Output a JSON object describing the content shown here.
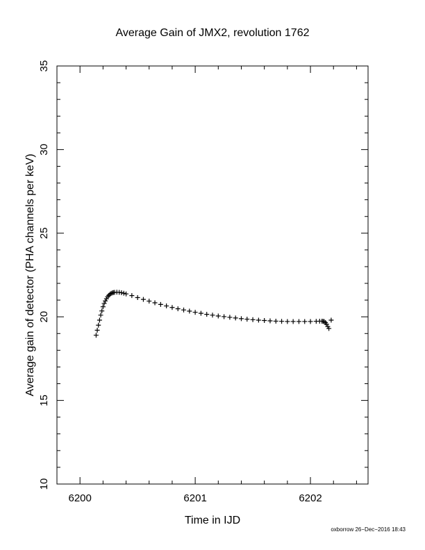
{
  "chart_data": {
    "type": "scatter",
    "title": "Average Gain of JMX2, revolution 1762",
    "xlabel": "Time in IJD",
    "ylabel": "Average gain of detector (PHA channels per keV)",
    "xlim": [
      6199.8,
      6202.5
    ],
    "ylim": [
      10,
      35
    ],
    "xticks": [
      6200,
      6201,
      6202
    ],
    "xtick_labels": [
      "6200",
      "6201",
      "6202"
    ],
    "yticks": [
      10,
      15,
      20,
      25,
      30,
      35
    ],
    "ytick_labels": [
      "10",
      "15",
      "20",
      "25",
      "30",
      "35"
    ],
    "marker": "+",
    "grid": false,
    "series": [
      {
        "x": [
          6200.14,
          6200.15,
          6200.16,
          6200.17,
          6200.18,
          6200.19,
          6200.2,
          6200.21,
          6200.22,
          6200.23,
          6200.24,
          6200.25,
          6200.26,
          6200.27,
          6200.28,
          6200.29,
          6200.3,
          6200.32,
          6200.34,
          6200.36,
          6200.38,
          6200.4,
          6200.45,
          6200.5,
          6200.55,
          6200.6,
          6200.65,
          6200.7,
          6200.75,
          6200.8,
          6200.85,
          6200.9,
          6200.95,
          6201.0,
          6201.05,
          6201.1,
          6201.15,
          6201.2,
          6201.25,
          6201.3,
          6201.35,
          6201.4,
          6201.45,
          6201.5,
          6201.55,
          6201.6,
          6201.65,
          6201.7,
          6201.75,
          6201.8,
          6201.85,
          6201.9,
          6201.95,
          6202.0,
          6202.05,
          6202.08,
          6202.1,
          6202.11,
          6202.12,
          6202.13,
          6202.14,
          6202.15,
          6202.16,
          6202.18
        ],
        "y": [
          18.9,
          19.2,
          19.5,
          19.8,
          20.1,
          20.35,
          20.6,
          20.8,
          20.95,
          21.08,
          21.2,
          21.28,
          21.35,
          21.4,
          21.43,
          21.45,
          21.46,
          21.47,
          21.46,
          21.44,
          21.41,
          21.37,
          21.27,
          21.15,
          21.04,
          20.94,
          20.84,
          20.74,
          20.65,
          20.56,
          20.48,
          20.41,
          20.34,
          20.27,
          20.21,
          20.15,
          20.1,
          20.05,
          20.01,
          19.97,
          19.93,
          19.89,
          19.86,
          19.83,
          19.8,
          19.78,
          19.76,
          19.74,
          19.73,
          19.72,
          19.72,
          19.72,
          19.72,
          19.72,
          19.73,
          19.74,
          19.74,
          19.73,
          19.72,
          19.65,
          19.55,
          19.42,
          19.3,
          19.8
        ]
      }
    ]
  },
  "footer_text": "oxborrow 26−Dec−2016 18:43"
}
